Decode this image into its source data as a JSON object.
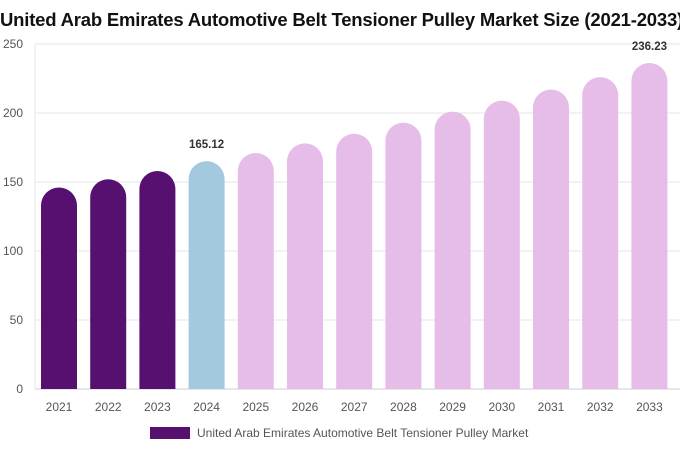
{
  "title": "United Arab Emirates Automotive Belt Tensioner Pulley Market Size (2021-2033)",
  "colors": {
    "historical": "#561170",
    "base_year": "#a4c9df",
    "forecast": "#e6bde8",
    "grid": "#e6e6e6",
    "axis": "#cccccc"
  },
  "legend": {
    "label": "United Arab Emirates Automotive Belt Tensioner Pulley Market",
    "color": "#561170",
    "placement": "bottom"
  },
  "chart_data": {
    "type": "bar",
    "title": "United Arab Emirates Automotive Belt Tensioner Pulley Market Size (2021-2033)",
    "xlabel": "",
    "ylabel": "",
    "ylim": [
      0,
      250
    ],
    "yticks": [
      "0",
      "50",
      "100",
      "150",
      "200",
      "250"
    ],
    "grid": "horizontal",
    "categories": [
      "2021",
      "2022",
      "2023",
      "2024",
      "2025",
      "2026",
      "2027",
      "2028",
      "2029",
      "2030",
      "2031",
      "2032",
      "2033"
    ],
    "series": [
      {
        "name": "United Arab Emirates Automotive Belt Tensioner Pulley Market",
        "values": [
          146,
          152,
          158,
          165.12,
          171,
          178,
          185,
          193,
          201,
          209,
          217,
          226,
          236.23
        ],
        "bar_colors": [
          "historical",
          "historical",
          "historical",
          "base_year",
          "forecast",
          "forecast",
          "forecast",
          "forecast",
          "forecast",
          "forecast",
          "forecast",
          "forecast",
          "forecast"
        ]
      }
    ],
    "data_labels": [
      {
        "category": "2024",
        "text": "165.12"
      },
      {
        "category": "2033",
        "text": "236.23"
      }
    ]
  }
}
